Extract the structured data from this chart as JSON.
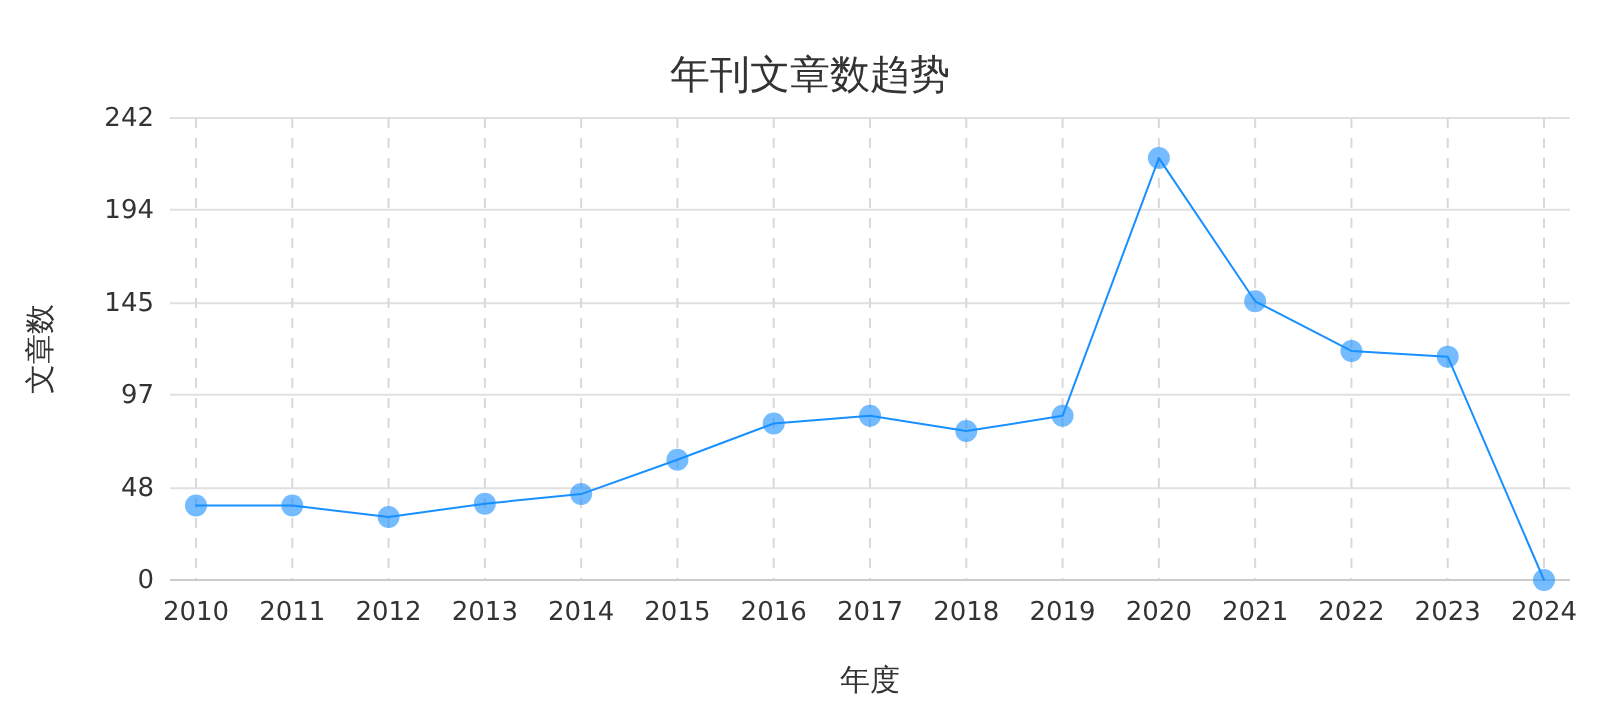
{
  "chart_data": {
    "type": "line",
    "title": "年刊文章数趋势",
    "xlabel": "年度",
    "ylabel": "文章数",
    "categories": [
      "2010",
      "2011",
      "2012",
      "2013",
      "2014",
      "2015",
      "2016",
      "2017",
      "2018",
      "2019",
      "2020",
      "2021",
      "2022",
      "2023",
      "2024"
    ],
    "series": [
      {
        "color": "#1890ff",
        "values": [
          39,
          39,
          33,
          40,
          45,
          63,
          82,
          86,
          78,
          86,
          221,
          146,
          120,
          117,
          0
        ]
      }
    ],
    "ylim": [
      0,
      242
    ],
    "yticks": [
      0,
      48,
      97,
      145,
      194,
      242
    ],
    "grid": true,
    "marker": "circle",
    "line_style": "solid"
  }
}
